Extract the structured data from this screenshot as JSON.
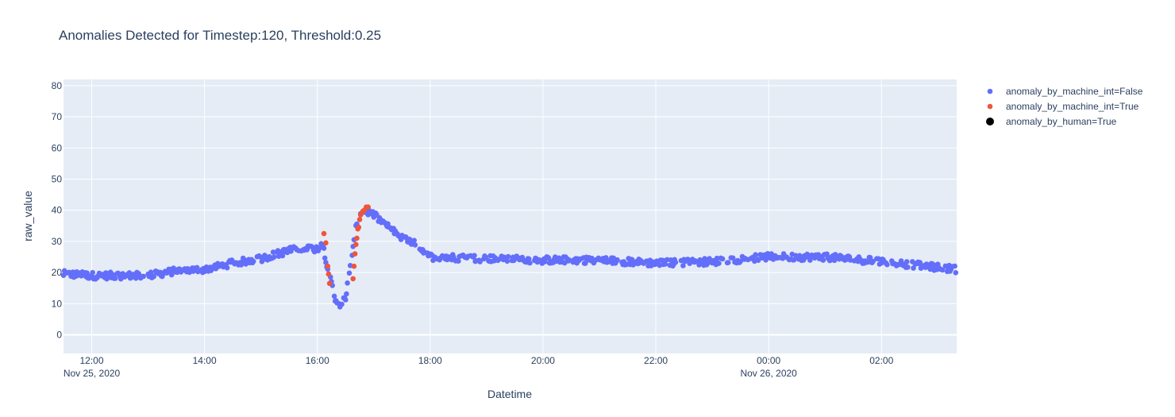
{
  "chart_data": {
    "type": "scatter",
    "title": "Anomalies Detected for Timestep:120, Threshold:0.25",
    "xlabel": "Datetime",
    "ylabel": "raw_value",
    "xlim": [
      "2020-11-25 11:30",
      "2020-11-26 03:20"
    ],
    "ylim": [
      -6,
      82
    ],
    "x_ticks": [
      {
        "time": "2020-11-25 12:00",
        "label": "12:00",
        "sublabel": "Nov 25, 2020"
      },
      {
        "time": "2020-11-25 14:00",
        "label": "14:00",
        "sublabel": ""
      },
      {
        "time": "2020-11-25 16:00",
        "label": "16:00",
        "sublabel": ""
      },
      {
        "time": "2020-11-25 18:00",
        "label": "18:00",
        "sublabel": ""
      },
      {
        "time": "2020-11-25 20:00",
        "label": "20:00",
        "sublabel": ""
      },
      {
        "time": "2020-11-25 22:00",
        "label": "22:00",
        "sublabel": ""
      },
      {
        "time": "2020-11-26 00:00",
        "label": "00:00",
        "sublabel": "Nov 26, 2020"
      },
      {
        "time": "2020-11-26 02:00",
        "label": "02:00",
        "sublabel": ""
      }
    ],
    "y_ticks": [
      0,
      10,
      20,
      30,
      40,
      50,
      60,
      70,
      80
    ],
    "grid": true,
    "legend_position": "right",
    "series": [
      {
        "name": "anomaly_by_machine_int=False",
        "color": "#636efa",
        "marker": "circle",
        "trend": [
          [
            "2020-11-25 11:30",
            19.5
          ],
          [
            "2020-11-25 12:00",
            19
          ],
          [
            "2020-11-25 12:30",
            19
          ],
          [
            "2020-11-25 13:00",
            19
          ],
          [
            "2020-11-25 13:30",
            20.5
          ],
          [
            "2020-11-25 14:00",
            21
          ],
          [
            "2020-11-25 14:30",
            23
          ],
          [
            "2020-11-25 15:00",
            24.5
          ],
          [
            "2020-11-25 15:30",
            27
          ],
          [
            "2020-11-25 15:50",
            28
          ],
          [
            "2020-11-25 16:00",
            27.5
          ],
          [
            "2020-11-25 16:05",
            30
          ],
          [
            "2020-11-25 16:12",
            20
          ],
          [
            "2020-11-25 16:20",
            10
          ],
          [
            "2020-11-25 16:25",
            10
          ],
          [
            "2020-11-25 16:30",
            12
          ],
          [
            "2020-11-25 16:35",
            22
          ],
          [
            "2020-11-25 16:42",
            36
          ],
          [
            "2020-11-25 16:50",
            40
          ],
          [
            "2020-11-25 17:00",
            38.5
          ],
          [
            "2020-11-25 17:30",
            31
          ],
          [
            "2020-11-25 17:45",
            29
          ],
          [
            "2020-11-25 18:00",
            25
          ],
          [
            "2020-11-25 19:00",
            24.5
          ],
          [
            "2020-11-25 20:00",
            24
          ],
          [
            "2020-11-25 21:00",
            24
          ],
          [
            "2020-11-25 22:00",
            23
          ],
          [
            "2020-11-25 23:00",
            23.5
          ],
          [
            "2020-11-26 00:00",
            25
          ],
          [
            "2020-11-26 01:00",
            25
          ],
          [
            "2020-11-26 02:00",
            23.5
          ],
          [
            "2020-11-26 03:20",
            21
          ]
        ]
      },
      {
        "name": "anomaly_by_machine_int=True",
        "color": "#ef553b",
        "marker": "circle",
        "points": [
          [
            "2020-11-25 16:07",
            32.5
          ],
          [
            "2020-11-25 16:09",
            29.5
          ],
          [
            "2020-11-25 16:11",
            22
          ],
          [
            "2020-11-25 16:12",
            19.5
          ],
          [
            "2020-11-25 16:13",
            16.5
          ],
          [
            "2020-11-25 16:38",
            18
          ],
          [
            "2020-11-25 16:39",
            22
          ],
          [
            "2020-11-25 16:40",
            26
          ],
          [
            "2020-11-25 16:41",
            29
          ],
          [
            "2020-11-25 16:42",
            31
          ],
          [
            "2020-11-25 16:43",
            34
          ],
          [
            "2020-11-25 16:44",
            34.5
          ],
          [
            "2020-11-25 16:45",
            37
          ],
          [
            "2020-11-25 16:46",
            38.5
          ],
          [
            "2020-11-25 16:48",
            39.5
          ],
          [
            "2020-11-25 16:50",
            40
          ],
          [
            "2020-11-25 16:52",
            41
          ],
          [
            "2020-11-25 16:54",
            41
          ]
        ]
      },
      {
        "name": "anomaly_by_human=True",
        "color": "#000000",
        "marker": "circle",
        "points": []
      }
    ]
  }
}
